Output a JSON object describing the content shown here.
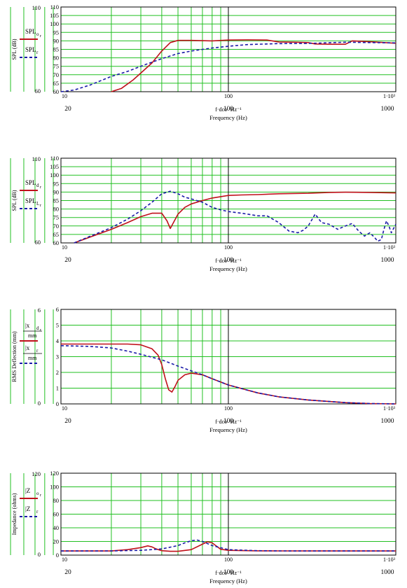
{
  "chart_data": [
    {
      "type": "line",
      "xscale": "log",
      "xlim": [
        10,
        1000
      ],
      "ylim": [
        60,
        110
      ],
      "grid": true,
      "ylabel": "SPL (dB)",
      "xlabel": "Frequency (Hz)",
      "xexpr": "f·dco ·Hz⁻¹",
      "yticks": [
        "60",
        "65",
        "70",
        "75",
        "80",
        "85",
        "90",
        "95",
        "100",
        "105",
        "110"
      ],
      "ytick_top": "110",
      "ytick_bottom": "60",
      "xticks_top": [
        "10",
        "100",
        "1·10³"
      ],
      "xticks_bottom": [
        "20",
        "100",
        "1000"
      ],
      "legend": [
        {
          "label": "SPL",
          "sub": "o",
          "subsub": "r",
          "color": "#c0101a",
          "dash": false
        },
        {
          "label": "SPL",
          "sub": "r",
          "subsub": "",
          "color": "#1a1aa8",
          "dash": true
        }
      ],
      "series": [
        {
          "color": "#c0101a",
          "dash": false,
          "x": [
            20,
            23,
            27,
            30,
            35,
            40,
            45,
            50,
            60,
            80,
            100,
            130,
            170,
            200,
            250,
            300,
            330,
            400,
            500,
            550,
            700,
            1000
          ],
          "y": [
            59,
            62,
            67,
            71,
            77,
            84,
            89,
            90.3,
            90.3,
            90,
            90.5,
            90.6,
            90.5,
            89.4,
            89.2,
            89,
            88.2,
            88,
            88,
            90,
            89.5,
            88.6
          ]
        },
        {
          "color": "#1a1aa8",
          "dash": true,
          "x": [
            10,
            12,
            15,
            20,
            25,
            30,
            40,
            50,
            60,
            80,
            100,
            130,
            150,
            200,
            300,
            500,
            700,
            1000
          ],
          "y": [
            59,
            61,
            64,
            69,
            72,
            75,
            79.5,
            82.5,
            84,
            85.8,
            86.8,
            87.8,
            88,
            88.4,
            88.5,
            89.2,
            89,
            88.8
          ]
        }
      ]
    },
    {
      "type": "line",
      "xscale": "log",
      "xlim": [
        10,
        1000
      ],
      "ylim": [
        60,
        110
      ],
      "grid": true,
      "ylabel": "SPL (dB)",
      "xlabel": "Frequency (Hz)",
      "xexpr": "f·dco ·Hz⁻¹",
      "yticks": [
        "60",
        "65",
        "70",
        "75",
        "80",
        "85",
        "90",
        "95",
        "100",
        "105",
        "110"
      ],
      "ytick_top": "110",
      "ytick_bottom": "60",
      "xticks_top": [
        "10",
        "100",
        "1·10³"
      ],
      "xticks_bottom": [
        "20",
        "100",
        "1000"
      ],
      "legend": [
        {
          "label": "SPL",
          "sub": "d",
          "subsub": "r",
          "color": "#c0101a",
          "dash": false
        },
        {
          "label": "SPL",
          "sub": "L",
          "subsub": "r",
          "color": "#1a1aa8",
          "dash": true
        }
      ],
      "series": [
        {
          "color": "#c0101a",
          "dash": false,
          "x": [
            12,
            15,
            20,
            25,
            30,
            35,
            40,
            43,
            45,
            47,
            50,
            55,
            60,
            70,
            80,
            100,
            120,
            150,
            200,
            300,
            400,
            500,
            700,
            1000
          ],
          "y": [
            60,
            63.5,
            68,
            72,
            75.5,
            77.5,
            77.5,
            73,
            68.5,
            72,
            77,
            81,
            83,
            85,
            86.5,
            88,
            88.3,
            88.5,
            89,
            89.3,
            89.8,
            89.9,
            89.8,
            89.5
          ]
        },
        {
          "color": "#1a1aa8",
          "dash": true,
          "x": [
            12,
            15,
            20,
            25,
            30,
            35,
            40,
            45,
            50,
            55,
            60,
            70,
            80,
            90,
            100,
            120,
            150,
            170,
            200,
            230,
            260,
            280,
            300,
            330,
            360,
            400,
            450,
            500,
            550,
            600,
            650,
            700,
            750,
            780,
            820,
            850,
            880,
            910,
            940,
            1000
          ],
          "y": [
            60,
            64,
            69,
            74,
            79,
            84,
            89,
            90.5,
            89,
            87,
            86,
            84,
            81,
            79.5,
            78.5,
            77.5,
            76,
            76,
            72,
            67,
            66,
            67.5,
            70,
            77,
            72,
            71,
            68,
            70,
            71.5,
            67,
            64,
            66,
            63,
            61,
            62,
            68,
            73,
            70,
            66,
            71
          ]
        }
      ]
    },
    {
      "type": "line",
      "xscale": "log",
      "xlim": [
        10,
        1000
      ],
      "ylim": [
        0,
        6
      ],
      "grid": true,
      "ylabel": "RMS Deflection (mm)",
      "xlabel": "Frequency (Hz)",
      "xexpr": "f·dco ·Hz⁻¹",
      "yticks": [
        "0",
        "1",
        "2",
        "3",
        "4",
        "5",
        "6"
      ],
      "ytick_top": "6",
      "ytick_bottom": "0",
      "xticks_top": [
        "10",
        "100",
        "1·10³"
      ],
      "xticks_bottom": [
        "20",
        "100",
        "1000"
      ],
      "legend": [
        {
          "label": "|x",
          "sub": "d",
          "subsub": "r",
          "unit": "mm",
          "color": "#c0101a",
          "dash": false
        },
        {
          "label": "|x",
          "sub": "r",
          "subsub": "",
          "unit": "mm",
          "color": "#1a1aa8",
          "dash": true
        }
      ],
      "series": [
        {
          "color": "#c0101a",
          "dash": false,
          "x": [
            10,
            15,
            20,
            25,
            30,
            35,
            38,
            40,
            42,
            44,
            46,
            48,
            50,
            55,
            60,
            70,
            80,
            100,
            150,
            200,
            300,
            500,
            700,
            1000
          ],
          "y": [
            3.8,
            3.8,
            3.8,
            3.8,
            3.75,
            3.5,
            3.1,
            2.5,
            1.6,
            0.9,
            0.75,
            1.1,
            1.5,
            1.85,
            1.95,
            1.85,
            1.6,
            1.2,
            0.7,
            0.45,
            0.25,
            0.08,
            0.02,
            0
          ]
        },
        {
          "color": "#1a1aa8",
          "dash": true,
          "x": [
            10,
            15,
            20,
            25,
            30,
            40,
            50,
            60,
            70,
            80,
            100,
            150,
            200,
            300,
            500,
            700,
            1000
          ],
          "y": [
            3.7,
            3.65,
            3.55,
            3.35,
            3.15,
            2.8,
            2.4,
            2.1,
            1.85,
            1.6,
            1.2,
            0.7,
            0.45,
            0.25,
            0.08,
            0.02,
            0
          ]
        }
      ]
    },
    {
      "type": "line",
      "xscale": "log",
      "xlim": [
        10,
        1000
      ],
      "ylim": [
        0,
        120
      ],
      "grid": true,
      "ylabel": "Impedance (ohms)",
      "xlabel": "Frequency (Hz)",
      "xexpr": "f·dco ·Hz⁻¹",
      "yticks": [
        "0",
        "20",
        "40",
        "60",
        "80",
        "100",
        "120"
      ],
      "ytick_top": "120",
      "ytick_bottom": "0",
      "xticks_top": [
        "10",
        "100",
        "1·10³"
      ],
      "xticks_bottom": [
        "20",
        "100",
        "1000"
      ],
      "legend": [
        {
          "label": "|Z",
          "sub": "o",
          "subsub": "r",
          "color": "#c0101a",
          "dash": false
        },
        {
          "label": "|Z",
          "sub": "r",
          "subsub": "",
          "color": "#1a1aa8",
          "dash": true
        }
      ],
      "series": [
        {
          "color": "#c0101a",
          "dash": false,
          "x": [
            10,
            20,
            25,
            30,
            33,
            35,
            37,
            40,
            45,
            50,
            60,
            70,
            75,
            80,
            85,
            90,
            100,
            150,
            200,
            500,
            1000
          ],
          "y": [
            6,
            6,
            8,
            11,
            13.5,
            12,
            9,
            6.5,
            5.5,
            5.5,
            8,
            16,
            19.5,
            18,
            13,
            8.5,
            7,
            6.3,
            6.2,
            6,
            6
          ]
        },
        {
          "color": "#1a1aa8",
          "dash": true,
          "x": [
            10,
            20,
            30,
            40,
            50,
            55,
            60,
            65,
            70,
            80,
            100,
            150,
            200,
            500,
            1000
          ],
          "y": [
            6,
            6.2,
            7,
            9,
            14,
            18,
            21,
            22,
            20,
            14,
            8,
            6.5,
            6.2,
            6,
            6
          ]
        }
      ]
    }
  ]
}
